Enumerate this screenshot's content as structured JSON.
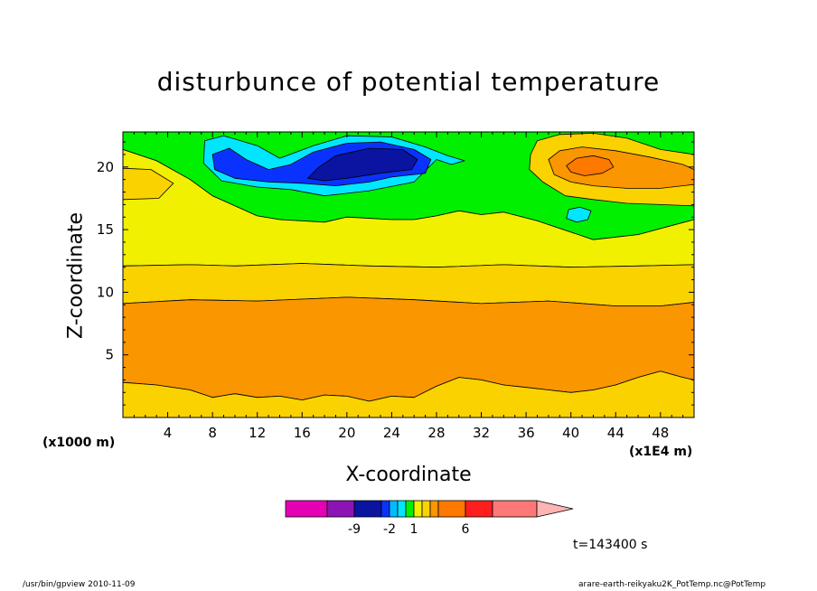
{
  "chart_data": {
    "type": "heatmap",
    "title": "disturbunce of potential temperature",
    "xlabel": "X-coordinate",
    "ylabel": "Z-coordinate",
    "x_unit_left": "(x1000 m)",
    "x_unit_right": "(x1E4 m)",
    "xlim": [
      0,
      51
    ],
    "ylim": [
      0,
      22.8
    ],
    "xticks": [
      4,
      8,
      12,
      16,
      20,
      24,
      28,
      32,
      36,
      40,
      44,
      48
    ],
    "yticks": [
      5,
      10,
      15,
      20
    ],
    "contours": [
      {
        "level": "green",
        "color": "#00f000",
        "points": [
          [
            0,
            22.8
          ],
          [
            51,
            22.8
          ],
          [
            51,
            15.8
          ],
          [
            46,
            14.6
          ],
          [
            42,
            14.2
          ],
          [
            37,
            15.7
          ],
          [
            34,
            16.4
          ],
          [
            32,
            16.2
          ],
          [
            30,
            16.5
          ],
          [
            28,
            16.1
          ],
          [
            26,
            15.8
          ],
          [
            24,
            15.8
          ],
          [
            20,
            16.0
          ],
          [
            18,
            15.6
          ],
          [
            14,
            15.8
          ],
          [
            12,
            16.1
          ],
          [
            8,
            17.7
          ],
          [
            6,
            19.0
          ],
          [
            3,
            20.5
          ],
          [
            0,
            21.4
          ]
        ]
      },
      {
        "level": "yellow",
        "color": "#f0f000",
        "points": [
          [
            0,
            12.1
          ],
          [
            6,
            12.2
          ],
          [
            10,
            12.1
          ],
          [
            16,
            12.3
          ],
          [
            22,
            12.1
          ],
          [
            28,
            12.0
          ],
          [
            34,
            12.2
          ],
          [
            40,
            12.0
          ],
          [
            46,
            12.1
          ],
          [
            51,
            12.2
          ],
          [
            51,
            15.8
          ],
          [
            46,
            14.6
          ],
          [
            42,
            14.2
          ],
          [
            37,
            15.7
          ],
          [
            34,
            16.4
          ],
          [
            32,
            16.2
          ],
          [
            30,
            16.5
          ],
          [
            28,
            16.1
          ],
          [
            26,
            15.8
          ],
          [
            24,
            15.8
          ],
          [
            20,
            16.0
          ],
          [
            18,
            15.6
          ],
          [
            14,
            15.8
          ],
          [
            12,
            16.1
          ],
          [
            8,
            17.7
          ],
          [
            6,
            19.0
          ],
          [
            3,
            20.5
          ],
          [
            0,
            21.4
          ]
        ]
      },
      {
        "level": "gold-top",
        "color": "#fad200",
        "points": [
          [
            0,
            19.9
          ],
          [
            2.5,
            19.8
          ],
          [
            4.5,
            18.7
          ],
          [
            3.2,
            17.5
          ],
          [
            0,
            17.4
          ]
        ]
      },
      {
        "level": "gold",
        "color": "#fad200",
        "points": [
          [
            0,
            9.1
          ],
          [
            6,
            9.4
          ],
          [
            12,
            9.3
          ],
          [
            20,
            9.6
          ],
          [
            26,
            9.4
          ],
          [
            32,
            9.1
          ],
          [
            38,
            9.3
          ],
          [
            44,
            8.9
          ],
          [
            48,
            8.9
          ],
          [
            51,
            9.2
          ],
          [
            51,
            12.2
          ],
          [
            46,
            12.1
          ],
          [
            40,
            12.0
          ],
          [
            34,
            12.2
          ],
          [
            28,
            12.0
          ],
          [
            22,
            12.1
          ],
          [
            16,
            12.3
          ],
          [
            10,
            12.1
          ],
          [
            6,
            12.2
          ],
          [
            0,
            12.1
          ]
        ]
      },
      {
        "level": "orange",
        "color": "#fa9600",
        "points": [
          [
            0,
            2.8
          ],
          [
            3,
            2.6
          ],
          [
            6,
            2.2
          ],
          [
            8,
            1.6
          ],
          [
            10,
            1.9
          ],
          [
            12,
            1.6
          ],
          [
            14,
            1.7
          ],
          [
            16,
            1.4
          ],
          [
            18,
            1.8
          ],
          [
            20,
            1.7
          ],
          [
            22,
            1.3
          ],
          [
            24,
            1.7
          ],
          [
            26,
            1.6
          ],
          [
            28,
            2.5
          ],
          [
            30,
            3.2
          ],
          [
            32,
            3.0
          ],
          [
            34,
            2.6
          ],
          [
            36,
            2.4
          ],
          [
            38,
            2.2
          ],
          [
            40,
            2.0
          ],
          [
            42,
            2.2
          ],
          [
            44,
            2.6
          ],
          [
            46,
            3.2
          ],
          [
            48,
            3.7
          ],
          [
            50,
            3.2
          ],
          [
            51,
            3.0
          ],
          [
            51,
            9.2
          ],
          [
            48,
            8.9
          ],
          [
            44,
            8.9
          ],
          [
            38,
            9.3
          ],
          [
            32,
            9.1
          ],
          [
            26,
            9.4
          ],
          [
            20,
            9.6
          ],
          [
            12,
            9.3
          ],
          [
            6,
            9.4
          ],
          [
            0,
            9.1
          ]
        ]
      },
      {
        "level": "gold-bottom",
        "color": "#fad200",
        "points": [
          [
            0,
            0
          ],
          [
            51,
            0
          ],
          [
            51,
            3.0
          ],
          [
            50,
            3.2
          ],
          [
            48,
            3.7
          ],
          [
            46,
            3.2
          ],
          [
            44,
            2.6
          ],
          [
            42,
            2.2
          ],
          [
            40,
            2.0
          ],
          [
            38,
            2.2
          ],
          [
            36,
            2.4
          ],
          [
            34,
            2.6
          ],
          [
            32,
            3.0
          ],
          [
            30,
            3.2
          ],
          [
            28,
            2.5
          ],
          [
            26,
            1.6
          ],
          [
            24,
            1.7
          ],
          [
            22,
            1.3
          ],
          [
            20,
            1.7
          ],
          [
            18,
            1.8
          ],
          [
            16,
            1.4
          ],
          [
            14,
            1.7
          ],
          [
            12,
            1.6
          ],
          [
            10,
            1.9
          ],
          [
            8,
            1.6
          ],
          [
            6,
            2.2
          ],
          [
            3,
            2.6
          ],
          [
            0,
            2.8
          ]
        ]
      },
      {
        "level": "cyan",
        "color": "#00e6ff",
        "points": [
          [
            7.3,
            22.1
          ],
          [
            9,
            22.5
          ],
          [
            12,
            21.7
          ],
          [
            14,
            20.7
          ],
          [
            17,
            21.7
          ],
          [
            20,
            22.5
          ],
          [
            24,
            22.4
          ],
          [
            27,
            21.6
          ],
          [
            29,
            20.9
          ],
          [
            30.5,
            20.5
          ],
          [
            29.3,
            20.2
          ],
          [
            28,
            20.6
          ],
          [
            26,
            18.8
          ],
          [
            22,
            18.1
          ],
          [
            18,
            17.7
          ],
          [
            15,
            18.2
          ],
          [
            12,
            18.4
          ],
          [
            8.8,
            18.9
          ],
          [
            7.2,
            20.3
          ]
        ]
      },
      {
        "level": "cyan-small",
        "color": "#00e6ff",
        "points": [
          [
            39.8,
            16.6
          ],
          [
            40.8,
            16.8
          ],
          [
            41.8,
            16.5
          ],
          [
            41.5,
            15.8
          ],
          [
            40.5,
            15.6
          ],
          [
            39.6,
            15.9
          ]
        ]
      },
      {
        "level": "blue",
        "color": "#0a32ff",
        "points": [
          [
            8.0,
            21.0
          ],
          [
            9.5,
            21.5
          ],
          [
            11,
            20.6
          ],
          [
            13,
            19.8
          ],
          [
            15,
            20.2
          ],
          [
            17,
            21.2
          ],
          [
            20,
            21.9
          ],
          [
            23,
            22.0
          ],
          [
            26,
            21.4
          ],
          [
            27.5,
            20.6
          ],
          [
            27,
            19.5
          ],
          [
            24,
            19.2
          ],
          [
            22,
            18.8
          ],
          [
            19,
            18.5
          ],
          [
            16,
            18.7
          ],
          [
            13,
            18.8
          ],
          [
            10,
            19.1
          ],
          [
            8.2,
            19.8
          ]
        ]
      },
      {
        "level": "navy",
        "color": "#0a14a0",
        "points": [
          [
            16.5,
            19.1
          ],
          [
            17.5,
            20.0
          ],
          [
            19,
            20.9
          ],
          [
            22,
            21.5
          ],
          [
            25,
            21.4
          ],
          [
            26.3,
            20.6
          ],
          [
            25.8,
            19.8
          ],
          [
            23,
            19.5
          ],
          [
            20,
            19.1
          ],
          [
            18,
            18.9
          ]
        ]
      },
      {
        "level": "gold-right",
        "color": "#fad200",
        "points": [
          [
            36.4,
            21.0
          ],
          [
            37,
            22.1
          ],
          [
            39,
            22.6
          ],
          [
            42,
            22.7
          ],
          [
            45,
            22.3
          ],
          [
            48,
            21.4
          ],
          [
            51,
            21.0
          ],
          [
            51,
            16.9
          ],
          [
            48,
            17.0
          ],
          [
            45,
            17.1
          ],
          [
            42,
            17.4
          ],
          [
            39.5,
            17.7
          ],
          [
            37.5,
            18.8
          ],
          [
            36.3,
            19.8
          ]
        ]
      },
      {
        "level": "orange-right",
        "color": "#fa9600",
        "points": [
          [
            38,
            20.6
          ],
          [
            39,
            21.3
          ],
          [
            41,
            21.6
          ],
          [
            44,
            21.3
          ],
          [
            47,
            20.8
          ],
          [
            50,
            20.2
          ],
          [
            51,
            19.8
          ],
          [
            51,
            18.6
          ],
          [
            48,
            18.3
          ],
          [
            45,
            18.3
          ],
          [
            42,
            18.5
          ],
          [
            40,
            18.8
          ],
          [
            38.5,
            19.4
          ]
        ]
      },
      {
        "level": "red-right",
        "color": "#ff7800",
        "points": [
          [
            39.6,
            20.1
          ],
          [
            40.5,
            20.7
          ],
          [
            42,
            20.9
          ],
          [
            43.4,
            20.6
          ],
          [
            43.8,
            20.0
          ],
          [
            42.8,
            19.5
          ],
          [
            41.2,
            19.3
          ],
          [
            40,
            19.6
          ]
        ]
      }
    ],
    "colorbar": {
      "colors": [
        "#e600b4",
        "#8c14b4",
        "#0a14a0",
        "#0a32ff",
        "#00bcff",
        "#00e6ff",
        "#00f000",
        "#f0f000",
        "#fad200",
        "#fa9600",
        "#ff7800",
        "#ff1e1e",
        "#ff7878",
        "#ffb4b4"
      ],
      "tick_labels": [
        "-9",
        "-2",
        "1",
        "6"
      ]
    },
    "time_label": "t=143400 s"
  },
  "footer": {
    "left": "/usr/bin/gpview  2010-11-09",
    "right": "arare-earth-reikyaku2K_PotTemp.nc@PotTemp"
  }
}
